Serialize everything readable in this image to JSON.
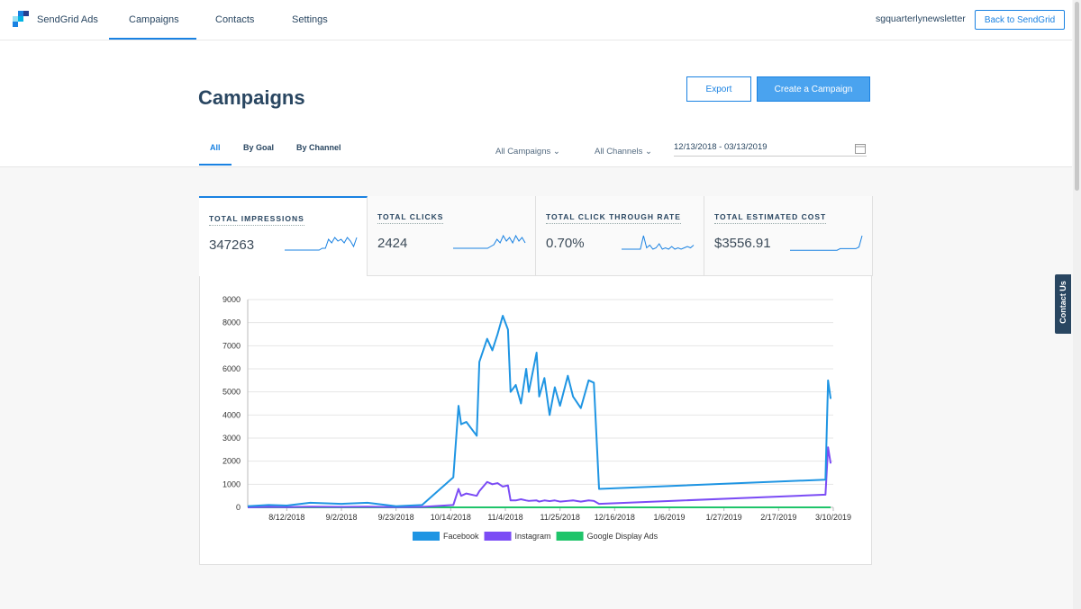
{
  "nav": {
    "brand": "SendGrid Ads",
    "links": [
      "Campaigns",
      "Contacts",
      "Settings"
    ],
    "account": "sgquarterlynewsletter",
    "back_button": "Back to SendGrid"
  },
  "header": {
    "title": "Campaigns",
    "export_button": "Export",
    "create_button": "Create a Campaign"
  },
  "tabs": [
    "All",
    "By Goal",
    "By Channel"
  ],
  "filters": {
    "campaigns": "All Campaigns",
    "channels": "All Channels",
    "date_range": "12/13/2018 - 03/13/2019"
  },
  "stats": [
    {
      "label": "TOTAL IMPRESSIONS",
      "value": "347263",
      "spark": [
        2,
        2,
        2,
        2,
        2,
        2,
        2,
        2,
        2,
        2,
        2,
        2,
        3,
        3,
        8,
        6,
        9,
        7,
        8,
        6,
        9,
        7,
        4,
        9
      ]
    },
    {
      "label": "TOTAL CLICKS",
      "value": "2424",
      "spark": [
        2,
        2,
        2,
        2,
        2,
        2,
        2,
        2,
        2,
        2,
        2,
        2,
        3,
        4,
        7,
        5,
        9,
        6,
        8,
        5,
        9,
        6,
        8,
        5
      ]
    },
    {
      "label": "TOTAL CLICK THROUGH RATE",
      "value": "0.70%",
      "spark": [
        2,
        2,
        2,
        2,
        2,
        2,
        2,
        12,
        3,
        5,
        2,
        3,
        6,
        2,
        3,
        2,
        4,
        2,
        3,
        2,
        3,
        4,
        3,
        5
      ]
    },
    {
      "label": "TOTAL ESTIMATED COST",
      "value": "$3556.91",
      "spark": [
        1,
        1,
        1,
        1,
        1,
        1,
        1,
        1,
        1,
        1,
        1,
        1,
        1,
        1,
        1,
        1,
        2,
        2,
        2,
        2,
        2,
        2,
        3,
        10
      ]
    }
  ],
  "contact_tab": "Contact Us",
  "chart_data": {
    "type": "line",
    "x": [
      "7/28/2018",
      "8/5/2018",
      "8/12/2018",
      "8/21/2018",
      "9/2/2018",
      "9/12/2018",
      "9/23/2018",
      "10/3/2018",
      "10/15/2018",
      "10/17/2018",
      "10/18/2018",
      "10/20/2018",
      "10/24/2018",
      "10/25/2018",
      "10/28/2018",
      "10/30/2018",
      "11/1/2018",
      "11/3/2018",
      "11/5/2018",
      "11/6/2018",
      "11/8/2018",
      "11/10/2018",
      "11/12/2018",
      "11/13/2018",
      "11/16/2018",
      "11/17/2018",
      "11/19/2018",
      "11/21/2018",
      "11/23/2018",
      "11/25/2018",
      "11/28/2018",
      "11/30/2018",
      "12/3/2018",
      "12/6/2018",
      "12/8/2018",
      "12/10/2018",
      "3/7/2019",
      "3/8/2019",
      "3/9/2019"
    ],
    "series": [
      {
        "name": "Facebook",
        "color": "#1f95e3",
        "values": [
          50,
          100,
          80,
          200,
          150,
          200,
          50,
          100,
          1300,
          4400,
          3600,
          3700,
          3100,
          6300,
          7300,
          6800,
          7500,
          8300,
          7700,
          5000,
          5300,
          4500,
          6000,
          5000,
          6700,
          4800,
          5600,
          4000,
          5200,
          4400,
          5700,
          4800,
          4300,
          5500,
          5400,
          800,
          1200,
          5500,
          4700
        ]
      },
      {
        "name": "Instagram",
        "color": "#7b4cf5",
        "values": [
          0,
          20,
          10,
          30,
          20,
          30,
          10,
          20,
          100,
          800,
          500,
          600,
          500,
          700,
          1100,
          1000,
          1050,
          900,
          950,
          300,
          300,
          350,
          300,
          280,
          300,
          250,
          300,
          270,
          300,
          250,
          280,
          300,
          250,
          300,
          280,
          150,
          550,
          2600,
          1900
        ]
      },
      {
        "name": "Google Display Ads",
        "color": "#1fc46a",
        "values": [
          0,
          0,
          0,
          0,
          0,
          0,
          0,
          0,
          0,
          0,
          0,
          0,
          0,
          0,
          0,
          0,
          0,
          0,
          0,
          0,
          0,
          0,
          0,
          0,
          0,
          0,
          0,
          0,
          0,
          0,
          0,
          0,
          0,
          0,
          0,
          0,
          0,
          0,
          0
        ]
      }
    ],
    "xlim": [
      "7/28/2018",
      "3/10/2019"
    ],
    "xticks": [
      "8/12/2018",
      "9/2/2018",
      "9/23/2018",
      "10/14/2018",
      "11/4/2018",
      "11/25/2018",
      "12/16/2018",
      "1/6/2019",
      "1/27/2019",
      "2/17/2019",
      "3/10/2019"
    ],
    "ylim": [
      0,
      9000
    ],
    "yticks": [
      0,
      1000,
      2000,
      3000,
      4000,
      5000,
      6000,
      7000,
      8000,
      9000
    ],
    "grid": true
  }
}
